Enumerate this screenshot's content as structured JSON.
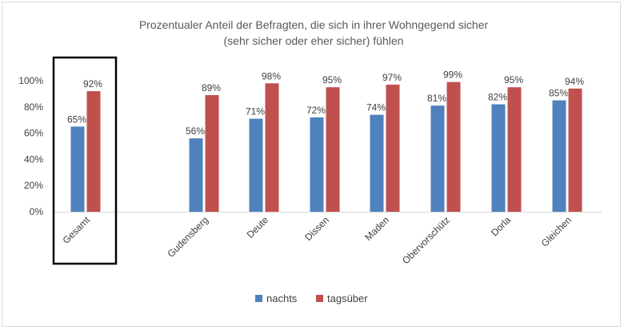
{
  "chart_data": {
    "type": "bar",
    "title_line1": "Prozentualer Anteil der Befragten, die sich in ihrer Wohngegend sicher",
    "title_line2": "(sehr sicher oder eher sicher) fühlen",
    "categories": [
      "Gesamt",
      "Gudensberg",
      "Deute",
      "Dissen",
      "Maden",
      "Obervorschütz",
      "Dorla",
      "Gleichen"
    ],
    "series": [
      {
        "name": "nachts",
        "color": "#4f81bd",
        "values": [
          65,
          56,
          71,
          72,
          74,
          81,
          82,
          85
        ]
      },
      {
        "name": "tagsüber",
        "color": "#c0504d",
        "values": [
          92,
          89,
          98,
          95,
          97,
          99,
          95,
          94
        ]
      }
    ],
    "value_suffix": "%",
    "ylim": [
      0,
      100
    ],
    "yticks": [
      "0%",
      "20%",
      "40%",
      "60%",
      "80%",
      "100%"
    ],
    "highlighted_category": "Gesamt",
    "legend_position": "bottom",
    "grid": false
  }
}
